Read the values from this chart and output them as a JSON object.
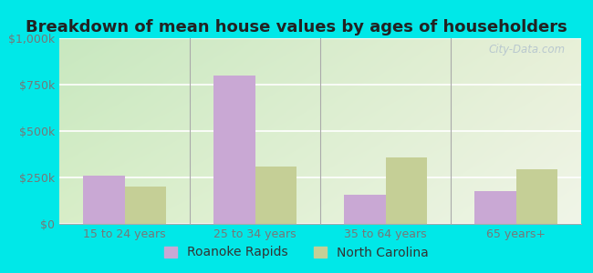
{
  "title": "Breakdown of mean house values by ages of householders",
  "categories": [
    "15 to 24 years",
    "25 to 34 years",
    "35 to 64 years",
    "65 years+"
  ],
  "roanoke_rapids": [
    260000,
    800000,
    155000,
    175000
  ],
  "north_carolina": [
    200000,
    310000,
    360000,
    295000
  ],
  "bar_color_roanoke": "#c9a8d4",
  "bar_color_nc": "#c5cf96",
  "ylim": [
    0,
    1000000
  ],
  "yticks": [
    0,
    250000,
    500000,
    750000,
    1000000
  ],
  "ytick_labels": [
    "$0",
    "$250k",
    "$500k",
    "$750k",
    "$1,000k"
  ],
  "legend_roanoke": "Roanoke Rapids",
  "legend_nc": "North Carolina",
  "bg_color_topleft": "#c8e8c0",
  "bg_color_topright": "#e8f0d8",
  "bg_color_bottomright": "#f0f5e8",
  "outer_background": "#00e8e8",
  "bar_width": 0.32,
  "watermark": "City-Data.com",
  "title_fontsize": 13,
  "axis_fontsize": 9,
  "legend_fontsize": 10,
  "tick_color": "#777777"
}
